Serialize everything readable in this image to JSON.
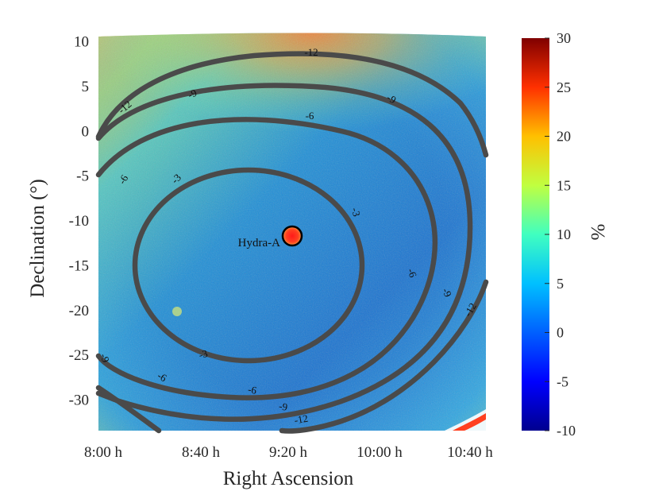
{
  "chart_data": {
    "type": "heatmap",
    "title": "",
    "xlabel": "Right Ascension",
    "ylabel": "Declination (°)",
    "x_ticks": [
      "8:00 h",
      "8:40 h",
      "9:20 h",
      "10:00 h",
      "10:40 h"
    ],
    "y_ticks": [
      "10",
      "5",
      "0",
      "-5",
      "-10",
      "-15",
      "-20",
      "-25",
      "-30"
    ],
    "y_tick_values": [
      10,
      5,
      0,
      -5,
      -10,
      -15,
      -20,
      -25,
      -30
    ],
    "ylim": [
      -33.5,
      10.5
    ],
    "colorbar": {
      "label": "%",
      "range": [
        -10,
        30
      ],
      "ticks": [
        "30",
        "25",
        "20",
        "15",
        "10",
        "5",
        "0",
        "-5",
        "-10"
      ],
      "tick_values": [
        30,
        25,
        20,
        15,
        10,
        5,
        0,
        -5,
        -10
      ],
      "colormap": [
        "#00008f",
        "#0000ff",
        "#0080ff",
        "#00ffff",
        "#80ff80",
        "#ffff00",
        "#ff8000",
        "#ff0000",
        "#800000"
      ]
    },
    "contour_levels": [
      -3,
      -6,
      -9,
      -12
    ],
    "contour_labels": [
      "-12",
      "-12",
      "-9",
      "-9",
      "-6",
      "-6",
      "-3",
      "-3",
      "-3",
      "-6",
      "-6",
      "-9",
      "-9",
      "-12",
      "-9",
      "-6",
      "-3",
      "-9",
      "-12"
    ],
    "source": {
      "name": "Hydra-A",
      "ra": "9:20 h",
      "dec": -12
    }
  }
}
